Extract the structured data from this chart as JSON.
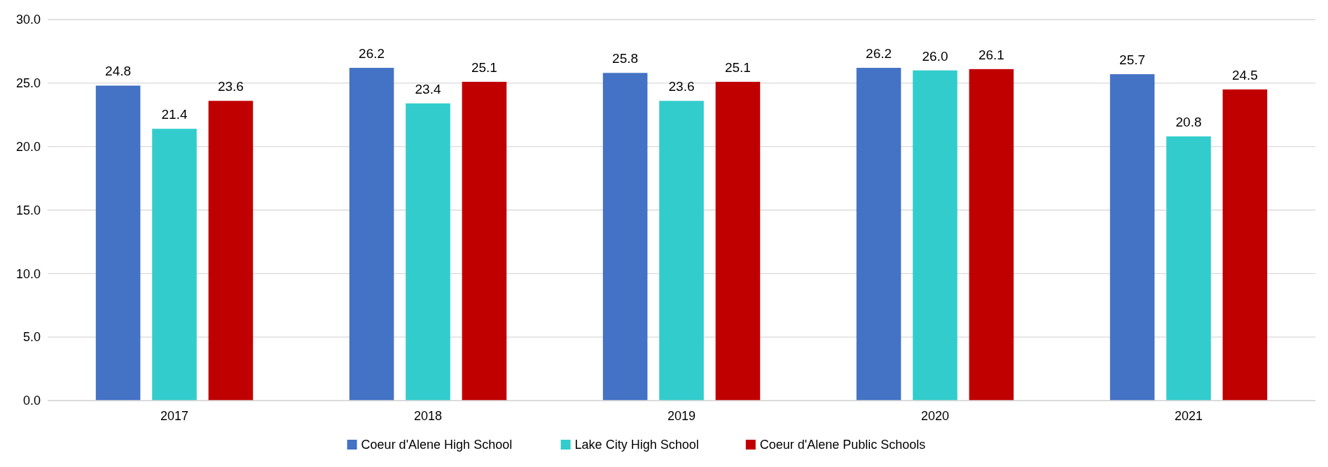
{
  "chart_data": {
    "type": "bar",
    "categories": [
      "2017",
      "2018",
      "2019",
      "2020",
      "2021"
    ],
    "series": [
      {
        "name": "Coeur d'Alene High School",
        "color": "#4472c4",
        "values": [
          24.8,
          26.2,
          25.8,
          26.2,
          25.7
        ],
        "value_labels": [
          "24.8",
          "26.2",
          "25.8",
          "26.2",
          "25.7"
        ]
      },
      {
        "name": "Lake City High School",
        "color": "#33cccc",
        "values": [
          21.4,
          23.4,
          23.6,
          26.0,
          20.8
        ],
        "value_labels": [
          "21.4",
          "23.4",
          "23.6",
          "26.0",
          "20.8"
        ]
      },
      {
        "name": "Coeur d'Alene Public Schools",
        "color": "#c00000",
        "values": [
          23.6,
          25.1,
          25.1,
          26.1,
          24.5
        ],
        "value_labels": [
          "23.6",
          "25.1",
          "25.1",
          "26.1",
          "24.5"
        ]
      }
    ],
    "ylim": [
      0,
      30
    ],
    "yticks": [
      {
        "value": 0,
        "label": "0.0"
      },
      {
        "value": 5,
        "label": "5.0"
      },
      {
        "value": 10,
        "label": "10.0"
      },
      {
        "value": 15,
        "label": "15.0"
      },
      {
        "value": 20,
        "label": "20.0"
      },
      {
        "value": 25,
        "label": "25.0"
      },
      {
        "value": 30,
        "label": "30.0"
      }
    ],
    "grid": "y",
    "legend": "bottom"
  }
}
